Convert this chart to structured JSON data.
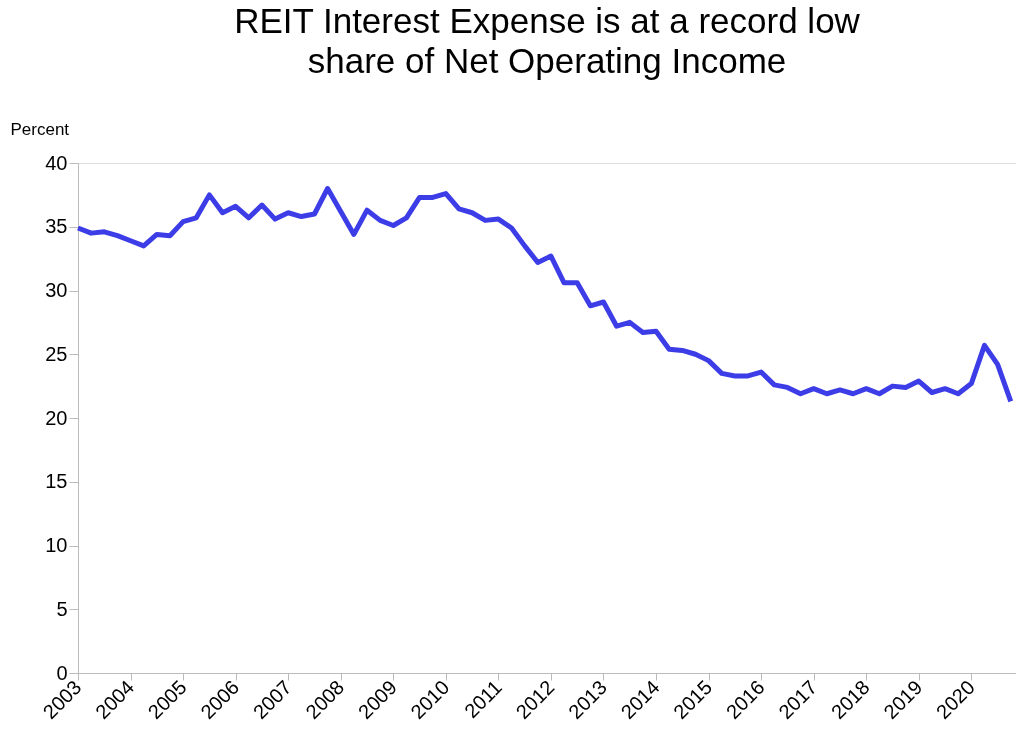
{
  "chart_data": {
    "type": "line",
    "title": [
      "REIT Interest Expense is at a record low",
      "share of Net Operating Income"
    ],
    "ylabel": "Percent",
    "x": [
      2003,
      2003.25,
      2003.5,
      2003.75,
      2004,
      2004.25,
      2004.5,
      2004.75,
      2005,
      2005.25,
      2005.5,
      2005.75,
      2006,
      2006.25,
      2006.5,
      2006.75,
      2007,
      2007.25,
      2007.5,
      2007.75,
      2008,
      2008.25,
      2008.5,
      2008.75,
      2009,
      2009.25,
      2009.5,
      2009.75,
      2010,
      2010.25,
      2010.5,
      2010.75,
      2011,
      2011.25,
      2011.5,
      2011.75,
      2012,
      2012.25,
      2012.5,
      2012.75,
      2013,
      2013.25,
      2013.5,
      2013.75,
      2014,
      2014.25,
      2014.5,
      2014.75,
      2015,
      2015.25,
      2015.5,
      2015.75,
      2016,
      2016.25,
      2016.5,
      2016.75,
      2017,
      2017.25,
      2017.5,
      2017.75,
      2018,
      2018.25,
      2018.5,
      2018.75,
      2019,
      2019.25,
      2019.5,
      2019.75,
      2020,
      2020.25,
      2020.5,
      2020.75
    ],
    "series": [
      {
        "color": "#3d3de8",
        "values": [
          34.9,
          34.5,
          34.6,
          34.3,
          33.9,
          33.5,
          34.4,
          34.3,
          35.4,
          35.7,
          37.5,
          36.1,
          36.6,
          35.7,
          36.7,
          35.6,
          36.1,
          35.8,
          36.0,
          38.0,
          36.2,
          34.4,
          36.3,
          35.5,
          35.1,
          35.7,
          37.3,
          37.3,
          37.6,
          36.4,
          36.1,
          35.5,
          35.6,
          34.9,
          33.5,
          32.2,
          32.7,
          30.6,
          30.6,
          28.8,
          29.1,
          27.2,
          27.5,
          26.7,
          26.8,
          25.4,
          25.3,
          25.0,
          24.5,
          23.5,
          23.3,
          23.3,
          23.6,
          22.6,
          22.4,
          21.9,
          22.3,
          21.9,
          22.2,
          21.9,
          22.3,
          21.9,
          22.5,
          22.4,
          22.9,
          22.0,
          22.3,
          21.9,
          22.7,
          25.7,
          24.2,
          21.3
        ]
      }
    ],
    "xlim": [
      2003,
      2020.85
    ],
    "xticks": [
      2003,
      2004,
      2005,
      2006,
      2007,
      2008,
      2009,
      2010,
      2011,
      2012,
      2013,
      2014,
      2015,
      2016,
      2017,
      2018,
      2019,
      2020
    ],
    "ylim": [
      0,
      40
    ],
    "yticks": [
      0,
      5,
      10,
      15,
      20,
      25,
      30,
      35,
      40
    ],
    "grid": false,
    "legend": false,
    "marker": "none",
    "line_style": "solid"
  }
}
